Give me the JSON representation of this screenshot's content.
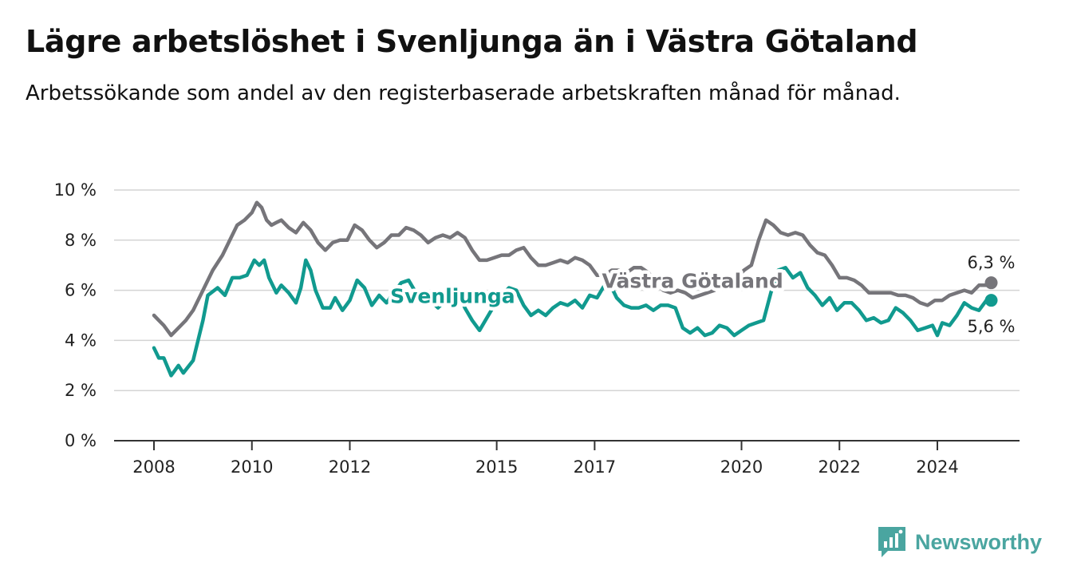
{
  "header": {
    "title": "Lägre arbetslöshet i Svenljunga än i Västra Götaland",
    "subtitle": "Arbetssökande som andel av den registerbaserade arbetskraften månad för månad."
  },
  "brand": {
    "name": "Newsworthy",
    "icon": "bar-chart-logo-icon",
    "color": "#4aa5a0"
  },
  "chart_data": {
    "type": "line",
    "title": "Lägre arbetslöshet i Svenljunga än i Västra Götaland",
    "subtitle": "Arbetssökande som andel av den registerbaserade arbetskraften månad för månad.",
    "ylim": [
      0,
      10
    ],
    "xlim": [
      2008.0,
      2024.9
    ],
    "y_ticks": [
      0,
      2,
      4,
      6,
      8,
      10
    ],
    "y_tick_labels": [
      "0 %",
      "2 %",
      "4 %",
      "6 %",
      "8 %",
      "10 %"
    ],
    "x_ticks": [
      2008,
      2010,
      2012,
      2015,
      2017,
      2020,
      2022,
      2024
    ],
    "x_tick_labels": [
      "2008",
      "2010",
      "2012",
      "2015",
      "2017",
      "2020",
      "2022",
      "2024"
    ],
    "grid": true,
    "series": [
      {
        "name": "Västra Götaland",
        "color": "#76757a",
        "end_label": "6,3 %",
        "points": [
          [
            2008.0,
            5.0
          ],
          [
            2008.1,
            4.8
          ],
          [
            2008.2,
            4.6
          ],
          [
            2008.35,
            4.2
          ],
          [
            2008.5,
            4.5
          ],
          [
            2008.65,
            4.8
          ],
          [
            2008.8,
            5.2
          ],
          [
            2009.0,
            6.0
          ],
          [
            2009.2,
            6.8
          ],
          [
            2009.4,
            7.4
          ],
          [
            2009.55,
            8.0
          ],
          [
            2009.7,
            8.6
          ],
          [
            2009.85,
            8.8
          ],
          [
            2010.0,
            9.1
          ],
          [
            2010.1,
            9.5
          ],
          [
            2010.2,
            9.3
          ],
          [
            2010.3,
            8.8
          ],
          [
            2010.4,
            8.6
          ],
          [
            2010.5,
            8.7
          ],
          [
            2010.6,
            8.8
          ],
          [
            2010.75,
            8.5
          ],
          [
            2010.9,
            8.3
          ],
          [
            2011.05,
            8.7
          ],
          [
            2011.2,
            8.4
          ],
          [
            2011.35,
            7.9
          ],
          [
            2011.5,
            7.6
          ],
          [
            2011.65,
            7.9
          ],
          [
            2011.8,
            8.0
          ],
          [
            2011.95,
            8.0
          ],
          [
            2012.1,
            8.6
          ],
          [
            2012.25,
            8.4
          ],
          [
            2012.4,
            8.0
          ],
          [
            2012.55,
            7.7
          ],
          [
            2012.7,
            7.9
          ],
          [
            2012.85,
            8.2
          ],
          [
            2013.0,
            8.2
          ],
          [
            2013.15,
            8.5
          ],
          [
            2013.3,
            8.4
          ],
          [
            2013.45,
            8.2
          ],
          [
            2013.6,
            7.9
          ],
          [
            2013.75,
            8.1
          ],
          [
            2013.9,
            8.2
          ],
          [
            2014.05,
            8.1
          ],
          [
            2014.2,
            8.3
          ],
          [
            2014.35,
            8.1
          ],
          [
            2014.5,
            7.6
          ],
          [
            2014.65,
            7.2
          ],
          [
            2014.8,
            7.2
          ],
          [
            2014.95,
            7.3
          ],
          [
            2015.1,
            7.4
          ],
          [
            2015.25,
            7.4
          ],
          [
            2015.4,
            7.6
          ],
          [
            2015.55,
            7.7
          ],
          [
            2015.7,
            7.3
          ],
          [
            2015.85,
            7.0
          ],
          [
            2016.0,
            7.0
          ],
          [
            2016.15,
            7.1
          ],
          [
            2016.3,
            7.2
          ],
          [
            2016.45,
            7.1
          ],
          [
            2016.6,
            7.3
          ],
          [
            2016.75,
            7.2
          ],
          [
            2016.9,
            7.0
          ],
          [
            2017.05,
            6.6
          ],
          [
            2017.2,
            6.6
          ],
          [
            2017.35,
            6.8
          ],
          [
            2017.5,
            6.8
          ],
          [
            2017.65,
            6.7
          ],
          [
            2017.8,
            6.9
          ],
          [
            2017.95,
            6.9
          ],
          [
            2018.1,
            6.7
          ],
          [
            2018.25,
            6.3
          ],
          [
            2018.4,
            6.0
          ],
          [
            2018.55,
            5.9
          ],
          [
            2018.7,
            6.0
          ],
          [
            2018.85,
            5.9
          ],
          [
            2019.0,
            5.7
          ],
          [
            2019.15,
            5.8
          ],
          [
            2019.3,
            5.9
          ],
          [
            2019.45,
            6.0
          ],
          [
            2019.6,
            6.3
          ],
          [
            2019.75,
            6.4
          ],
          [
            2019.9,
            6.5
          ],
          [
            2020.05,
            6.8
          ],
          [
            2020.2,
            7.0
          ],
          [
            2020.35,
            8.0
          ],
          [
            2020.5,
            8.8
          ],
          [
            2020.65,
            8.6
          ],
          [
            2020.8,
            8.3
          ],
          [
            2020.95,
            8.2
          ],
          [
            2021.1,
            8.3
          ],
          [
            2021.25,
            8.2
          ],
          [
            2021.4,
            7.8
          ],
          [
            2021.55,
            7.5
          ],
          [
            2021.7,
            7.4
          ],
          [
            2021.85,
            7.0
          ],
          [
            2022.0,
            6.5
          ],
          [
            2022.15,
            6.5
          ],
          [
            2022.3,
            6.4
          ],
          [
            2022.45,
            6.2
          ],
          [
            2022.6,
            5.9
          ],
          [
            2022.75,
            5.9
          ],
          [
            2022.9,
            5.9
          ],
          [
            2023.05,
            5.9
          ],
          [
            2023.2,
            5.8
          ],
          [
            2023.35,
            5.8
          ],
          [
            2023.5,
            5.7
          ],
          [
            2023.65,
            5.5
          ],
          [
            2023.8,
            5.4
          ],
          [
            2023.95,
            5.6
          ],
          [
            2024.1,
            5.6
          ],
          [
            2024.25,
            5.8
          ],
          [
            2024.4,
            5.9
          ],
          [
            2024.55,
            6.0
          ],
          [
            2024.7,
            5.9
          ],
          [
            2024.85,
            6.2
          ],
          [
            2025.0,
            6.2
          ],
          [
            2025.1,
            6.3
          ]
        ]
      },
      {
        "name": "Svenljunga",
        "color": "#119a8f",
        "end_label": "5,6 %",
        "points": [
          [
            2008.0,
            3.7
          ],
          [
            2008.1,
            3.3
          ],
          [
            2008.2,
            3.3
          ],
          [
            2008.35,
            2.6
          ],
          [
            2008.5,
            3.0
          ],
          [
            2008.6,
            2.7
          ],
          [
            2008.8,
            3.2
          ],
          [
            2009.0,
            4.8
          ],
          [
            2009.1,
            5.8
          ],
          [
            2009.3,
            6.1
          ],
          [
            2009.45,
            5.8
          ],
          [
            2009.6,
            6.5
          ],
          [
            2009.75,
            6.5
          ],
          [
            2009.9,
            6.6
          ],
          [
            2010.05,
            7.2
          ],
          [
            2010.15,
            7.0
          ],
          [
            2010.25,
            7.2
          ],
          [
            2010.35,
            6.5
          ],
          [
            2010.5,
            5.9
          ],
          [
            2010.6,
            6.2
          ],
          [
            2010.75,
            5.9
          ],
          [
            2010.9,
            5.5
          ],
          [
            2011.0,
            6.1
          ],
          [
            2011.1,
            7.2
          ],
          [
            2011.2,
            6.8
          ],
          [
            2011.3,
            6.0
          ],
          [
            2011.45,
            5.3
          ],
          [
            2011.6,
            5.3
          ],
          [
            2011.7,
            5.7
          ],
          [
            2011.85,
            5.2
          ],
          [
            2012.0,
            5.6
          ],
          [
            2012.15,
            6.4
          ],
          [
            2012.3,
            6.1
          ],
          [
            2012.45,
            5.4
          ],
          [
            2012.6,
            5.8
          ],
          [
            2012.75,
            5.5
          ],
          [
            2012.9,
            5.9
          ],
          [
            2013.05,
            6.3
          ],
          [
            2013.2,
            6.4
          ],
          [
            2013.35,
            5.9
          ],
          [
            2013.5,
            5.8
          ],
          [
            2013.65,
            5.6
          ],
          [
            2013.8,
            5.3
          ],
          [
            2013.95,
            5.6
          ],
          [
            2014.1,
            6.1
          ],
          [
            2014.25,
            5.8
          ],
          [
            2014.35,
            5.3
          ],
          [
            2014.5,
            4.8
          ],
          [
            2014.65,
            4.4
          ],
          [
            2014.8,
            4.9
          ],
          [
            2014.95,
            5.4
          ],
          [
            2015.1,
            5.8
          ],
          [
            2015.25,
            6.1
          ],
          [
            2015.4,
            6.0
          ],
          [
            2015.55,
            5.4
          ],
          [
            2015.7,
            5.0
          ],
          [
            2015.85,
            5.2
          ],
          [
            2016.0,
            5.0
          ],
          [
            2016.15,
            5.3
          ],
          [
            2016.3,
            5.5
          ],
          [
            2016.45,
            5.4
          ],
          [
            2016.6,
            5.6
          ],
          [
            2016.75,
            5.3
          ],
          [
            2016.9,
            5.8
          ],
          [
            2017.05,
            5.7
          ],
          [
            2017.2,
            6.2
          ],
          [
            2017.35,
            6.1
          ],
          [
            2017.45,
            5.7
          ],
          [
            2017.6,
            5.4
          ],
          [
            2017.75,
            5.3
          ],
          [
            2017.9,
            5.3
          ],
          [
            2018.05,
            5.4
          ],
          [
            2018.2,
            5.2
          ],
          [
            2018.35,
            5.4
          ],
          [
            2018.5,
            5.4
          ],
          [
            2018.65,
            5.3
          ],
          [
            2018.8,
            4.5
          ],
          [
            2018.95,
            4.3
          ],
          [
            2019.1,
            4.5
          ],
          [
            2019.25,
            4.2
          ],
          [
            2019.4,
            4.3
          ],
          [
            2019.55,
            4.6
          ],
          [
            2019.7,
            4.5
          ],
          [
            2019.85,
            4.2
          ],
          [
            2020.0,
            4.4
          ],
          [
            2020.15,
            4.6
          ],
          [
            2020.3,
            4.7
          ],
          [
            2020.45,
            4.8
          ],
          [
            2020.6,
            5.9
          ],
          [
            2020.75,
            6.8
          ],
          [
            2020.9,
            6.9
          ],
          [
            2021.05,
            6.5
          ],
          [
            2021.2,
            6.7
          ],
          [
            2021.35,
            6.1
          ],
          [
            2021.5,
            5.8
          ],
          [
            2021.65,
            5.4
          ],
          [
            2021.8,
            5.7
          ],
          [
            2021.95,
            5.2
          ],
          [
            2022.1,
            5.5
          ],
          [
            2022.25,
            5.5
          ],
          [
            2022.4,
            5.2
          ],
          [
            2022.55,
            4.8
          ],
          [
            2022.7,
            4.9
          ],
          [
            2022.85,
            4.7
          ],
          [
            2023.0,
            4.8
          ],
          [
            2023.15,
            5.3
          ],
          [
            2023.3,
            5.1
          ],
          [
            2023.45,
            4.8
          ],
          [
            2023.6,
            4.4
          ],
          [
            2023.75,
            4.5
          ],
          [
            2023.9,
            4.6
          ],
          [
            2024.0,
            4.2
          ],
          [
            2024.1,
            4.7
          ],
          [
            2024.25,
            4.6
          ],
          [
            2024.4,
            5.0
          ],
          [
            2024.55,
            5.5
          ],
          [
            2024.7,
            5.3
          ],
          [
            2024.85,
            5.2
          ],
          [
            2025.0,
            5.6
          ],
          [
            2025.1,
            5.6
          ]
        ]
      }
    ],
    "annotations": [
      {
        "text": "Västra Götaland",
        "series": "Västra Götaland",
        "x": 2019.0,
        "y": 6.1
      },
      {
        "text": "Svenljunga",
        "series": "Svenljunga",
        "x": 2014.1,
        "y": 5.5
      }
    ]
  }
}
